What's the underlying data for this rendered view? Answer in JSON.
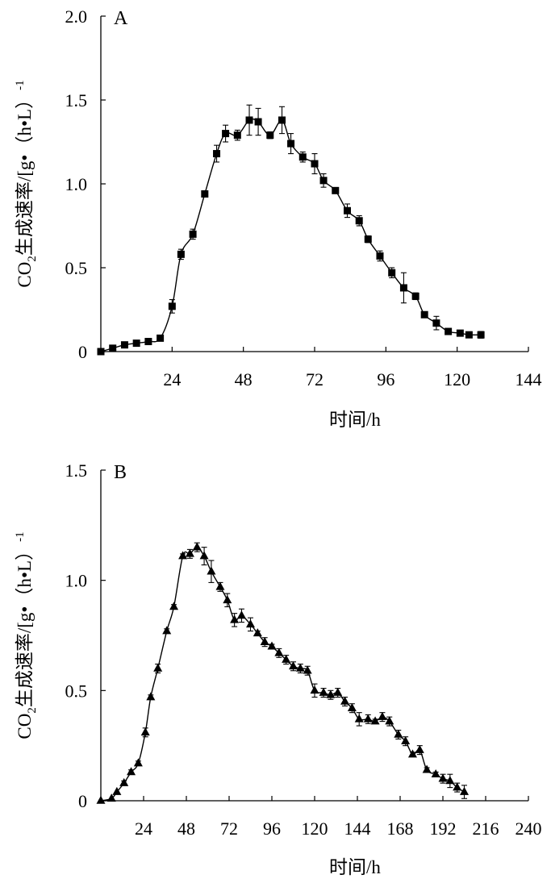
{
  "chart_data": [
    {
      "type": "line",
      "panel_label": "A",
      "xlabel": "时间/h",
      "ylabel": "CO2生成速率/[g•（h•L）-1]",
      "ylabel_parts": {
        "prefix": "CO",
        "subscript": "2",
        "main": "生成速率/[g•（h•L）",
        "superscript": "-1",
        "suffix": ""
      },
      "xlim": [
        0,
        144
      ],
      "ylim": [
        0,
        2.0
      ],
      "xticks": [
        24,
        48,
        72,
        96,
        120,
        144
      ],
      "yticks": [
        0,
        0.5,
        1.0,
        1.5,
        2.0
      ],
      "ytick_labels": [
        "0",
        "0.5",
        "1.0",
        "1.5",
        "2.0"
      ],
      "marker": "square",
      "series": [
        {
          "x": [
            0,
            4,
            8,
            12,
            16,
            20,
            24,
            27,
            31,
            35,
            39,
            42,
            46,
            50,
            53,
            57,
            61,
            64,
            68,
            72,
            75,
            79,
            83,
            87,
            90,
            94,
            98,
            102,
            106,
            109,
            113,
            117,
            121,
            124,
            128
          ],
          "y": [
            0.0,
            0.02,
            0.04,
            0.05,
            0.06,
            0.08,
            0.27,
            0.58,
            0.7,
            0.94,
            1.18,
            1.3,
            1.29,
            1.38,
            1.37,
            1.29,
            1.38,
            1.24,
            1.16,
            1.12,
            1.02,
            0.96,
            0.84,
            0.78,
            0.67,
            0.57,
            0.47,
            0.38,
            0.33,
            0.22,
            0.17,
            0.12,
            0.11,
            0.1,
            0.1
          ],
          "err": [
            0.0,
            0.0,
            0.0,
            0.0,
            0.0,
            0.0,
            0.04,
            0.03,
            0.03,
            0.01,
            0.05,
            0.05,
            0.03,
            0.09,
            0.08,
            0.02,
            0.08,
            0.06,
            0.03,
            0.06,
            0.04,
            0.01,
            0.04,
            0.03,
            0.02,
            0.03,
            0.03,
            0.09,
            0.02,
            0.01,
            0.04,
            0.01,
            0.01,
            0.0,
            0.02
          ]
        }
      ]
    },
    {
      "type": "line",
      "panel_label": "B",
      "xlabel": "时间/h",
      "ylabel": "CO2生成速率/[g•（h•L）-1]",
      "ylabel_parts": {
        "prefix": "CO",
        "subscript": "2",
        "main": "生成速率/[g•（h•L）",
        "superscript": "-1",
        "suffix": ""
      },
      "xlim": [
        0,
        240
      ],
      "ylim": [
        0,
        1.5
      ],
      "xticks": [
        24,
        48,
        72,
        96,
        120,
        144,
        168,
        192,
        216,
        240
      ],
      "yticks": [
        0,
        0.5,
        1.0,
        1.5
      ],
      "ytick_labels": [
        "0",
        "0.5",
        "1.0",
        "1.5"
      ],
      "marker": "triangle",
      "series": [
        {
          "x": [
            0,
            6,
            9,
            13,
            17,
            21,
            25,
            28,
            32,
            37,
            41,
            46,
            50,
            54,
            58,
            62,
            67,
            71,
            75,
            79,
            84,
            88,
            92,
            96,
            100,
            104,
            108,
            112,
            116,
            120,
            125,
            129,
            133,
            137,
            141,
            145,
            150,
            154,
            158,
            162,
            167,
            171,
            175,
            179,
            183,
            188,
            192,
            196,
            200,
            204
          ],
          "y": [
            0.0,
            0.01,
            0.04,
            0.08,
            0.13,
            0.17,
            0.31,
            0.47,
            0.6,
            0.77,
            0.88,
            1.11,
            1.12,
            1.15,
            1.11,
            1.04,
            0.97,
            0.91,
            0.82,
            0.84,
            0.8,
            0.76,
            0.72,
            0.7,
            0.67,
            0.64,
            0.61,
            0.6,
            0.59,
            0.5,
            0.49,
            0.48,
            0.49,
            0.45,
            0.42,
            0.37,
            0.37,
            0.36,
            0.38,
            0.36,
            0.3,
            0.27,
            0.21,
            0.23,
            0.14,
            0.12,
            0.1,
            0.09,
            0.06,
            0.04
          ],
          "err": [
            0.0,
            0.0,
            0.0,
            0.01,
            0.01,
            0.01,
            0.02,
            0.01,
            0.02,
            0.01,
            0.01,
            0.01,
            0.02,
            0.02,
            0.04,
            0.05,
            0.02,
            0.03,
            0.03,
            0.03,
            0.03,
            0.01,
            0.02,
            0.01,
            0.02,
            0.02,
            0.02,
            0.02,
            0.02,
            0.03,
            0.02,
            0.02,
            0.02,
            0.02,
            0.02,
            0.03,
            0.02,
            0.01,
            0.02,
            0.02,
            0.02,
            0.02,
            0.01,
            0.02,
            0.01,
            0.01,
            0.02,
            0.03,
            0.02,
            0.03
          ]
        }
      ]
    }
  ]
}
